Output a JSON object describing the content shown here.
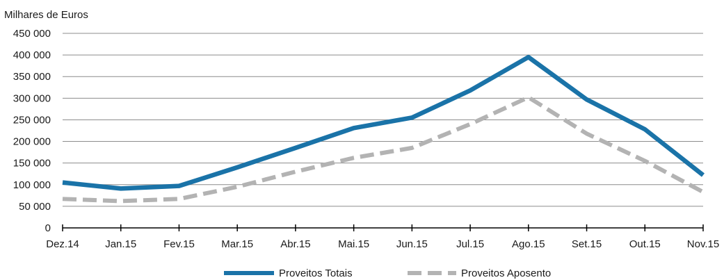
{
  "chart_data": {
    "type": "line",
    "ylabel": "Milhares de Euros",
    "ylim": [
      0,
      450000
    ],
    "ytick_values": [
      0,
      50000,
      100000,
      150000,
      200000,
      250000,
      300000,
      350000,
      400000,
      450000
    ],
    "ytick_labels": [
      "0",
      "50 000",
      "100 000",
      "150 000",
      "200 000",
      "250 000",
      "300 000",
      "350 000",
      "400 000",
      "450 000"
    ],
    "categories": [
      "Dez.14",
      "Jan.15",
      "Fev.15",
      "Mar.15",
      "Abr.15",
      "Mai.15",
      "Jun.15",
      "Jul.15",
      "Ago.15",
      "Set.15",
      "Out.15",
      "Nov.15"
    ],
    "grid": true,
    "legend_position": "bottom",
    "series": [
      {
        "name": "Proveitos Totais",
        "color": "#1a73a8",
        "style": "solid",
        "values": [
          105000,
          91000,
          97000,
          140000,
          185000,
          231000,
          255000,
          318000,
          395000,
          297000,
          228000,
          122000
        ]
      },
      {
        "name": "Proveitos Aposento",
        "color": "#b3b3b3",
        "style": "dashed",
        "values": [
          67000,
          62000,
          67000,
          95000,
          130000,
          162000,
          185000,
          240000,
          302000,
          218000,
          155000,
          83000
        ]
      }
    ]
  }
}
